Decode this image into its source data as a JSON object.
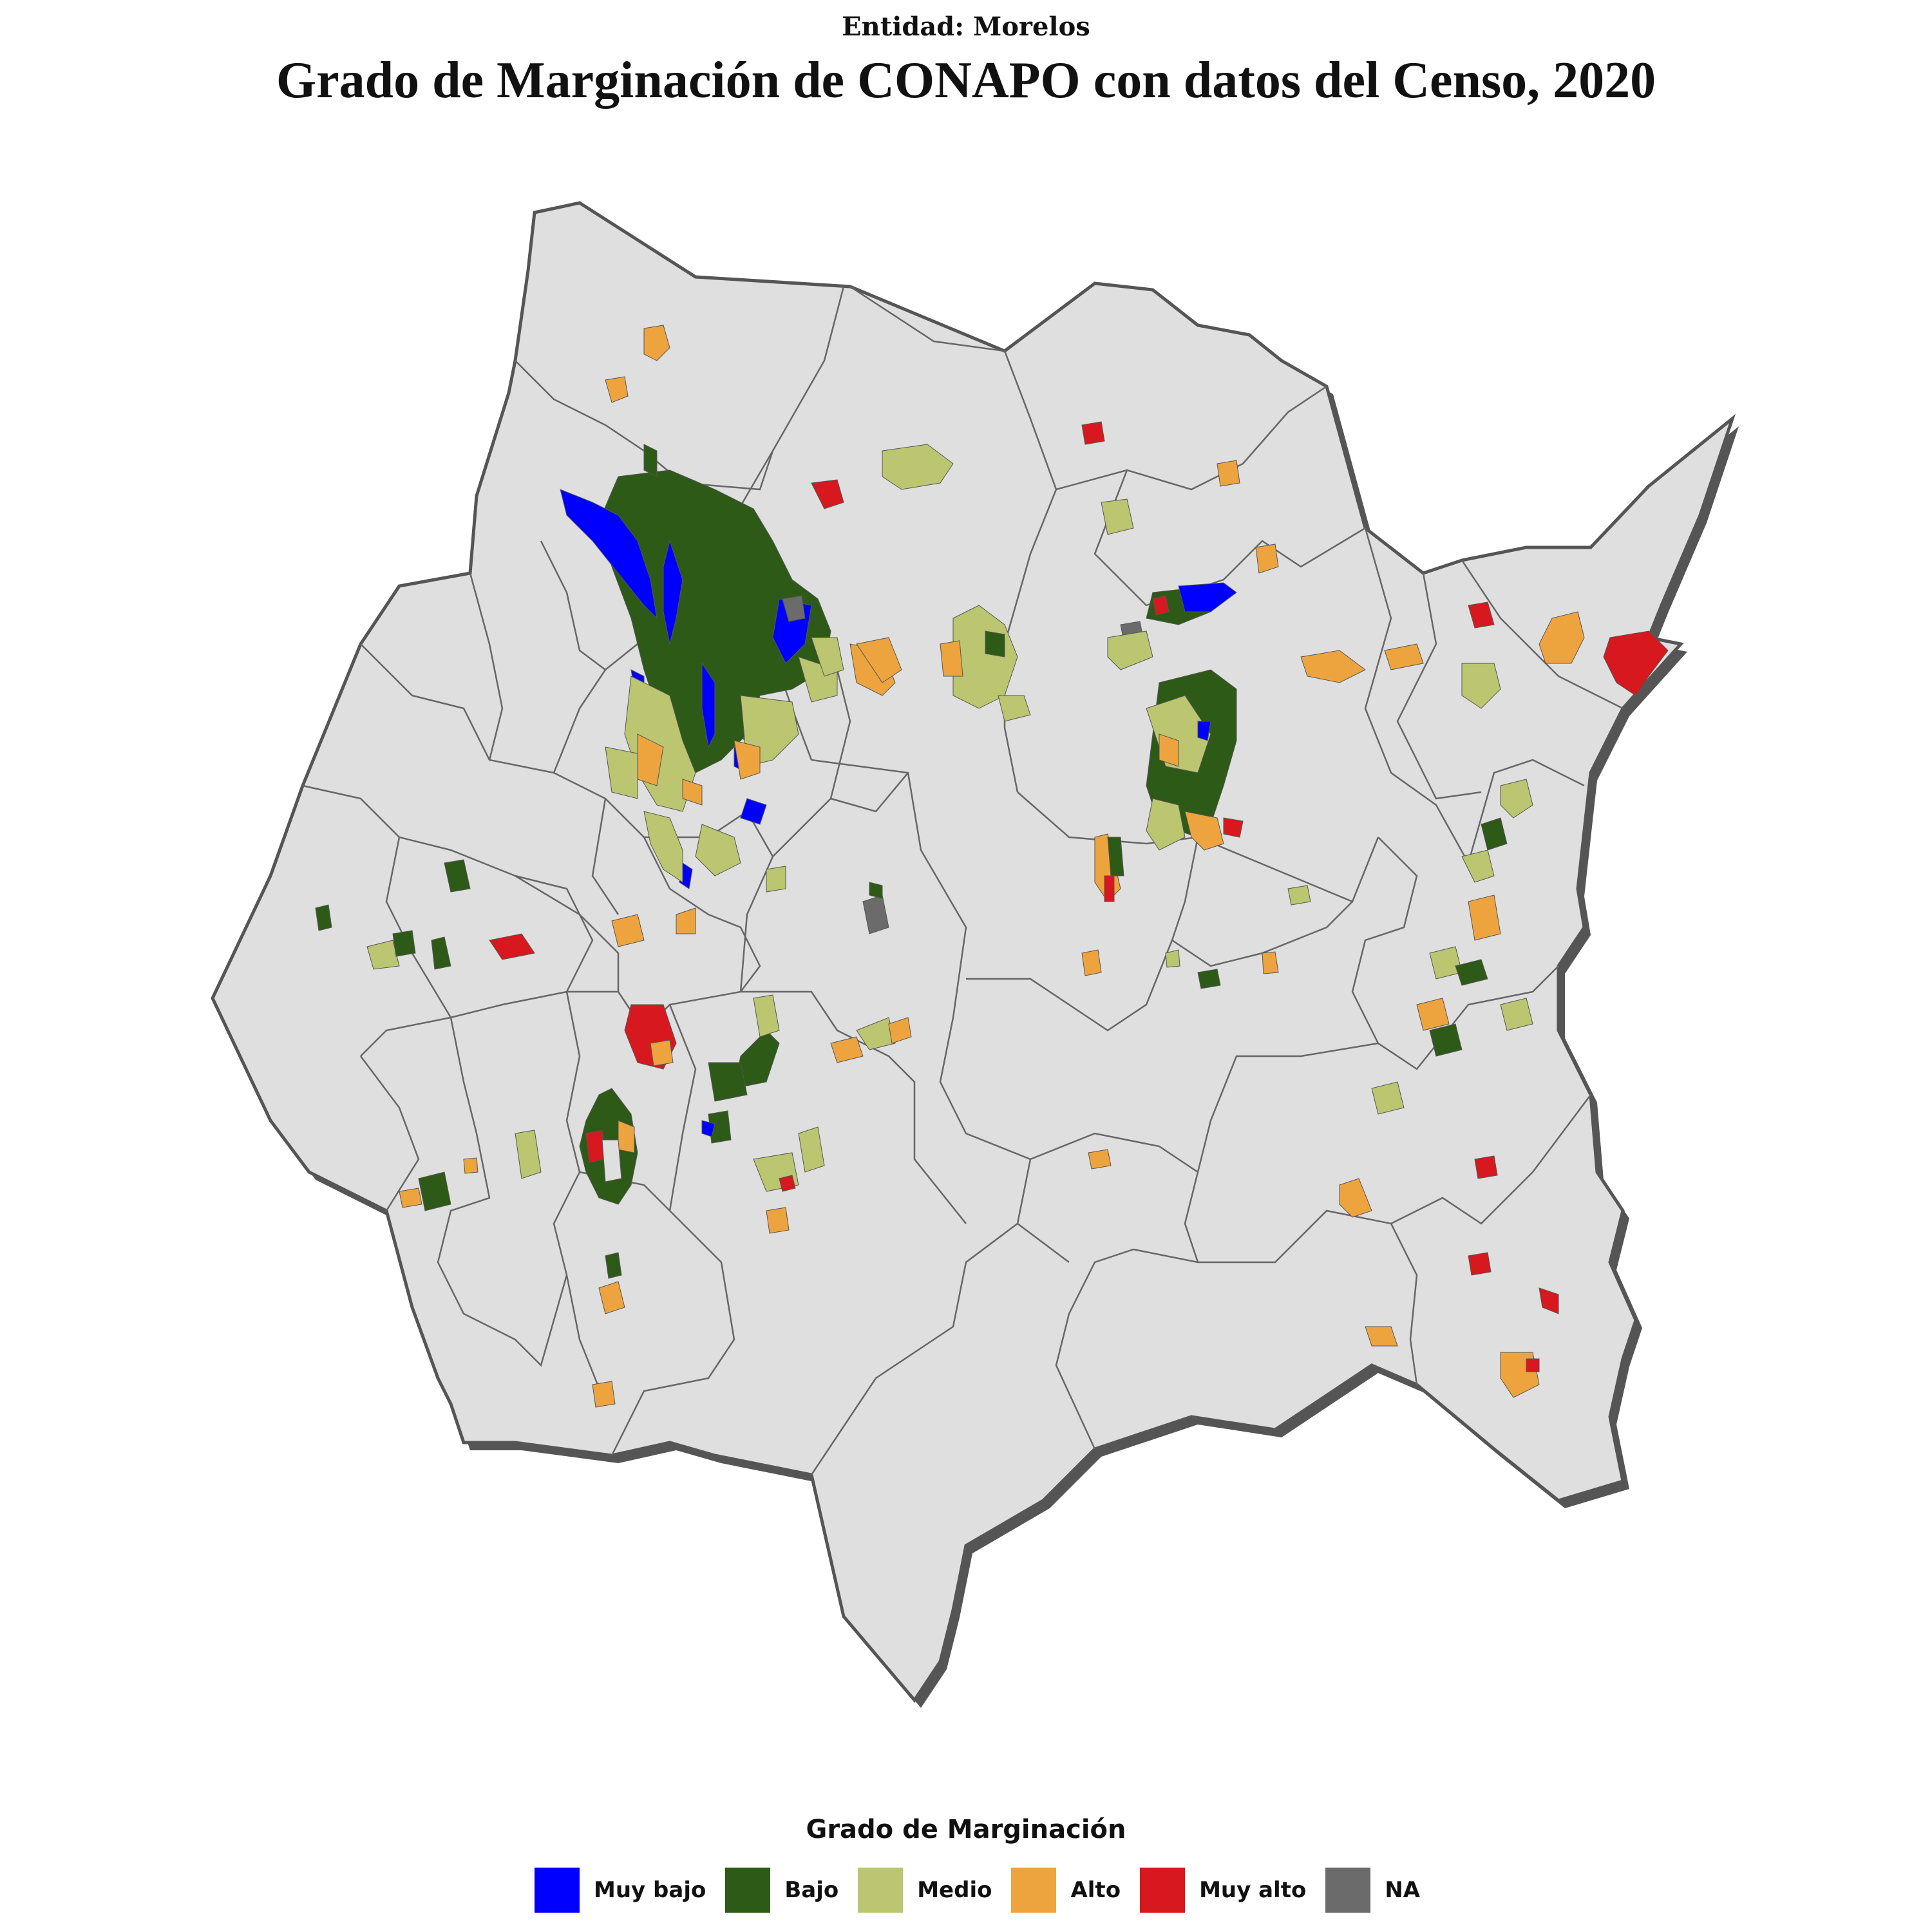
{
  "map": {
    "subtitle": "Entidad: Morelos",
    "title": "Grado de Marginación de CONAPO con datos del Censo, 2020",
    "legend_title": "Grado de Marginación",
    "legend": [
      {
        "label": "Muy bajo",
        "color": "#0000ff"
      },
      {
        "label": "Bajo",
        "color": "#2d5a16"
      },
      {
        "label": "Medio",
        "color": "#bcc56f"
      },
      {
        "label": "Alto",
        "color": "#eea43e"
      },
      {
        "label": "Muy alto",
        "color": "#d7181e"
      },
      {
        "label": "NA",
        "color": "#6b6b6b"
      }
    ],
    "base_fill": "#dfdfdf",
    "border_color": "#555555"
  }
}
